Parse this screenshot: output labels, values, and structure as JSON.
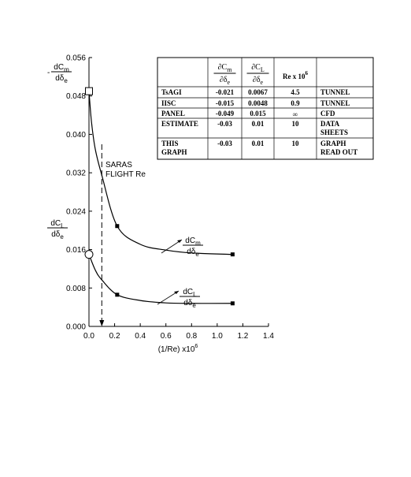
{
  "chart_data": {
    "type": "line",
    "x_label": {
      "text": "(1/Re) x10",
      "sup": "6"
    },
    "xlim": [
      0,
      1.4
    ],
    "xticks": [
      {
        "value": 0,
        "label": "0.0"
      },
      0.2,
      0.4,
      0.6,
      0.8,
      {
        "value": 1,
        "label": "1.0"
      },
      1.2,
      1.4
    ],
    "ylim": [
      0,
      0.056
    ],
    "yticks": [
      {
        "value": 0,
        "label": "0.000"
      },
      0.008,
      0.016,
      0.024,
      0.032,
      {
        "value": 0.04,
        "label": "0.040"
      },
      0.048,
      0.056
    ],
    "y_labels": [
      {
        "sign": "-",
        "num": "dC",
        "num_sub": "m",
        "den": "d",
        "den_greek": "δ",
        "den_sub": "e"
      },
      {
        "sign": "",
        "num": "dC",
        "num_sub": "L",
        "den": "d",
        "den_greek": "δ",
        "den_sub": "e"
      }
    ],
    "series": [
      {
        "color": "#000000",
        "x": [
          0,
          0.02,
          0.05,
          0.1,
          0.22,
          0.4,
          0.6,
          0.8,
          1.12
        ],
        "values": [
          0.049,
          0.0425,
          0.0368,
          0.0315,
          0.0209,
          0.0171,
          0.0159,
          0.0153,
          0.015
        ],
        "curve_label": {
          "num": "dC",
          "num_sub": "m",
          "den": "d",
          "den_greek": "δ",
          "den_sub": "e"
        }
      },
      {
        "color": "#000000",
        "x": [
          0,
          0.05,
          0.1,
          0.22,
          0.4,
          0.6,
          0.8,
          1.12
        ],
        "values": [
          0.015,
          0.0117,
          0.0097,
          0.0066,
          0.0054,
          0.0049,
          0.0048,
          0.0048
        ],
        "curve_label": {
          "num": "dC",
          "num_sub": "L",
          "den": "d",
          "den_greek": "δ",
          "den_sub": "e"
        }
      }
    ],
    "points": [
      {
        "x": [
          0,
          0.22,
          1.12
        ],
        "values": [
          0.049,
          0.0209,
          0.015
        ],
        "shapes": [
          "open-square",
          "filled-square",
          "filled-square"
        ]
      },
      {
        "x": [
          0,
          0.22,
          1.12
        ],
        "values": [
          0.015,
          0.0066,
          0.0048
        ],
        "shapes": [
          "open-circle",
          "filled-square",
          "filled-square"
        ]
      }
    ],
    "reference_line": {
      "x": 0.1,
      "label": [
        "SARAS",
        "FLIGHT Re"
      ]
    },
    "table": {
      "header": [
        "",
        {
          "num": "∂C",
          "num_sub": "m",
          "den": "∂δ",
          "den_sub": "e"
        },
        {
          "num": "∂C",
          "num_sub": "L",
          "den": "∂δ",
          "den_sub": "e"
        },
        {
          "text": "Re x 10",
          "sup": "6"
        },
        ""
      ],
      "rows": [
        [
          "TsAGI",
          "-0.021",
          "0.0067",
          "4.5",
          "TUNNEL"
        ],
        [
          "IISC",
          "-0.015",
          "0.0048",
          "0.9",
          "TUNNEL"
        ],
        [
          "PANEL",
          "-0.049",
          "0.015",
          "∞",
          "CFD"
        ],
        [
          "ESTIMATE",
          "-0.03",
          "0.01",
          "10",
          "DATA SHEETS"
        ],
        [
          "THIS GRAPH",
          "-0.03",
          "0.01",
          "10",
          "GRAPH READ OUT"
        ]
      ]
    }
  }
}
